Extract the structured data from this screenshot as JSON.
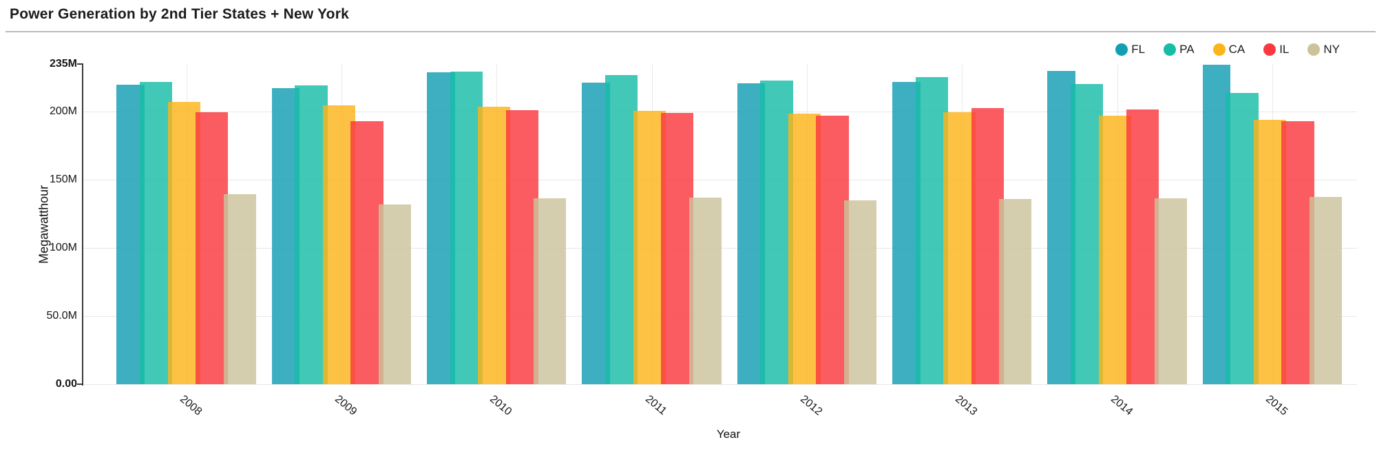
{
  "page": {
    "title": "Power Generation by 2nd Tier States + New York"
  },
  "chart_data": {
    "type": "bar",
    "title": "Power Generation by 2nd Tier States + New York",
    "xlabel": "Year",
    "ylabel": "Megawatthour",
    "unit": "megawatthours, values in millions",
    "legend_position": "top-right",
    "grid": true,
    "bar_opacity": 0.82,
    "categories": [
      "2008",
      "2009",
      "2010",
      "2011",
      "2012",
      "2013",
      "2014",
      "2015"
    ],
    "series": [
      {
        "name": "FL",
        "color": "#129EB3",
        "values": [
          219.7,
          217.2,
          228.9,
          221.4,
          221.0,
          221.7,
          229.7,
          234.5
        ]
      },
      {
        "name": "PA",
        "color": "#17BCA7",
        "values": [
          221.7,
          219.5,
          229.6,
          226.8,
          223.0,
          225.6,
          220.5,
          213.8
        ]
      },
      {
        "name": "CA",
        "color": "#FCB41A",
        "values": [
          207.4,
          204.5,
          203.5,
          200.7,
          198.6,
          199.5,
          197.3,
          194.1
        ]
      },
      {
        "name": "IL",
        "color": "#F9383F",
        "values": [
          199.5,
          193.2,
          201.1,
          199.0,
          197.3,
          202.8,
          201.7,
          193.2
        ]
      },
      {
        "name": "NY",
        "color": "#CCC39C",
        "values": [
          139.6,
          132.1,
          136.3,
          137.0,
          135.1,
          135.8,
          136.3,
          137.6
        ]
      }
    ],
    "y_axis": {
      "max": 235,
      "ticks": [
        {
          "label": "0.00",
          "value": 0,
          "bold": true
        },
        {
          "label": "50.0M",
          "value": 50,
          "bold": false
        },
        {
          "label": "100M",
          "value": 100,
          "bold": false
        },
        {
          "label": "150M",
          "value": 150,
          "bold": false
        },
        {
          "label": "200M",
          "value": 200,
          "bold": false
        },
        {
          "label": "235M",
          "value": 235,
          "bold": true
        }
      ]
    }
  }
}
